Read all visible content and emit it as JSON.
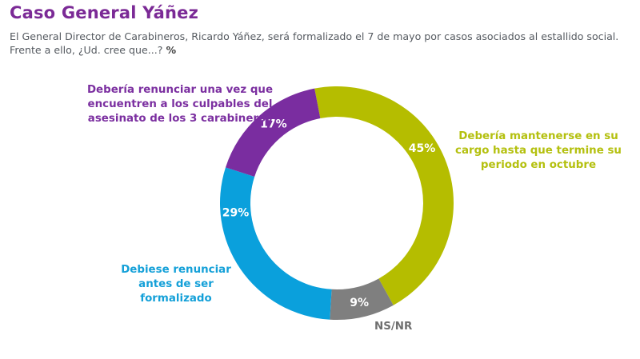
{
  "header": {
    "title": "Caso General Yáñez",
    "subtitle": "El General Director de Carabineros, Ricardo Yáñez, será formalizado el 7 de mayo por casos asociados al estallido social. Frente a ello, ¿Ud. cree que...?",
    "unit": "%"
  },
  "chart_data": {
    "type": "pie",
    "variant": "donut",
    "title": "Caso General Yáñez",
    "unit": "%",
    "direction": "clockwise",
    "start": "slightly left of 12 o'clock",
    "slices": [
      {
        "label": "Debería mantenerse en su cargo hasta que termine su periodo en octubre",
        "value": 45,
        "value_label": "45%",
        "color": "#b5bd00"
      },
      {
        "label": "NS/NR",
        "value": 9,
        "value_label": "9%",
        "color": "#7f7f7f"
      },
      {
        "label": "Debiese renunciar antes de ser formalizado",
        "value": 29,
        "value_label": "29%",
        "color": "#0aa0dc"
      },
      {
        "label": "Debería renunciar una vez que encuentren a los culpables del asesinato de los 3 carabineros",
        "value": 17,
        "value_label": "17%",
        "color": "#7a2da0"
      }
    ],
    "legend": "external labels beside each slice"
  },
  "labels": {
    "green": "Debería mantenerse en su cargo hasta que termine su periodo en octubre",
    "gray": "NS/NR",
    "blue": "Debiese renunciar antes de ser formalizado",
    "purple": "Debería renunciar una vez que encuentren a los culpables del asesinato de los 3 carabineros"
  }
}
